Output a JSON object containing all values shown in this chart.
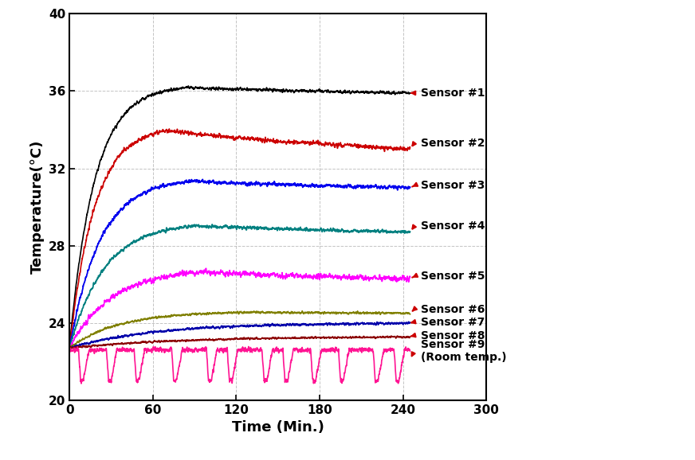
{
  "title": "",
  "xlabel": "Time (Min.)",
  "ylabel": "Temperature(°C)",
  "xlim": [
    0,
    300
  ],
  "ylim": [
    20,
    40
  ],
  "xticks": [
    0,
    60,
    120,
    180,
    240,
    300
  ],
  "yticks": [
    20,
    24,
    28,
    32,
    36,
    40
  ],
  "sensors": [
    {
      "label": "Sensor #1",
      "color": "#000000",
      "start": 22.8,
      "plateau": 36.3,
      "end": 35.9,
      "tau": 18,
      "noise": 0.08,
      "linewidth": 1.2
    },
    {
      "label": "Sensor #2",
      "color": "#cc0000",
      "start": 22.7,
      "plateau": 34.2,
      "end": 33.0,
      "tau": 18,
      "noise": 0.12,
      "linewidth": 1.2
    },
    {
      "label": "Sensor #3",
      "color": "#0000ee",
      "start": 22.7,
      "plateau": 31.5,
      "end": 31.0,
      "tau": 22,
      "noise": 0.1,
      "linewidth": 1.3
    },
    {
      "label": "Sensor #4",
      "color": "#008080",
      "start": 22.7,
      "plateau": 29.2,
      "end": 28.7,
      "tau": 25,
      "noise": 0.09,
      "linewidth": 1.3
    },
    {
      "label": "Sensor #5",
      "color": "#ff00ff",
      "start": 22.7,
      "plateau": 26.8,
      "end": 26.3,
      "tau": 30,
      "noise": 0.15,
      "linewidth": 1.2
    },
    {
      "label": "Sensor #6",
      "color": "#808000",
      "start": 22.7,
      "plateau": 24.6,
      "end": 24.5,
      "tau": 35,
      "noise": 0.06,
      "linewidth": 1.2
    },
    {
      "label": "Sensor #7",
      "color": "#0000aa",
      "start": 22.7,
      "plateau": 24.0,
      "end": 24.0,
      "tau": 60,
      "noise": 0.06,
      "linewidth": 1.3
    },
    {
      "label": "Sensor #8",
      "color": "#8b0000",
      "start": 22.7,
      "plateau": 23.3,
      "end": 23.3,
      "tau": 80,
      "noise": 0.05,
      "linewidth": 1.2
    }
  ],
  "room_temp": {
    "label": "Sensor #9\n(Room temp.)",
    "color": "#ff1493",
    "base": 22.6,
    "noise": 0.1,
    "dip_depth": 1.6,
    "linewidth": 1.2
  },
  "annotation_color": "#cc0000",
  "text_y_positions": [
    35.9,
    33.3,
    31.1,
    29.0,
    26.4,
    24.7,
    24.05,
    23.35,
    22.55
  ],
  "end_y_positions": [
    35.9,
    33.0,
    31.0,
    28.7,
    26.3,
    24.5,
    24.0,
    23.3,
    22.1
  ],
  "background_color": "#ffffff"
}
